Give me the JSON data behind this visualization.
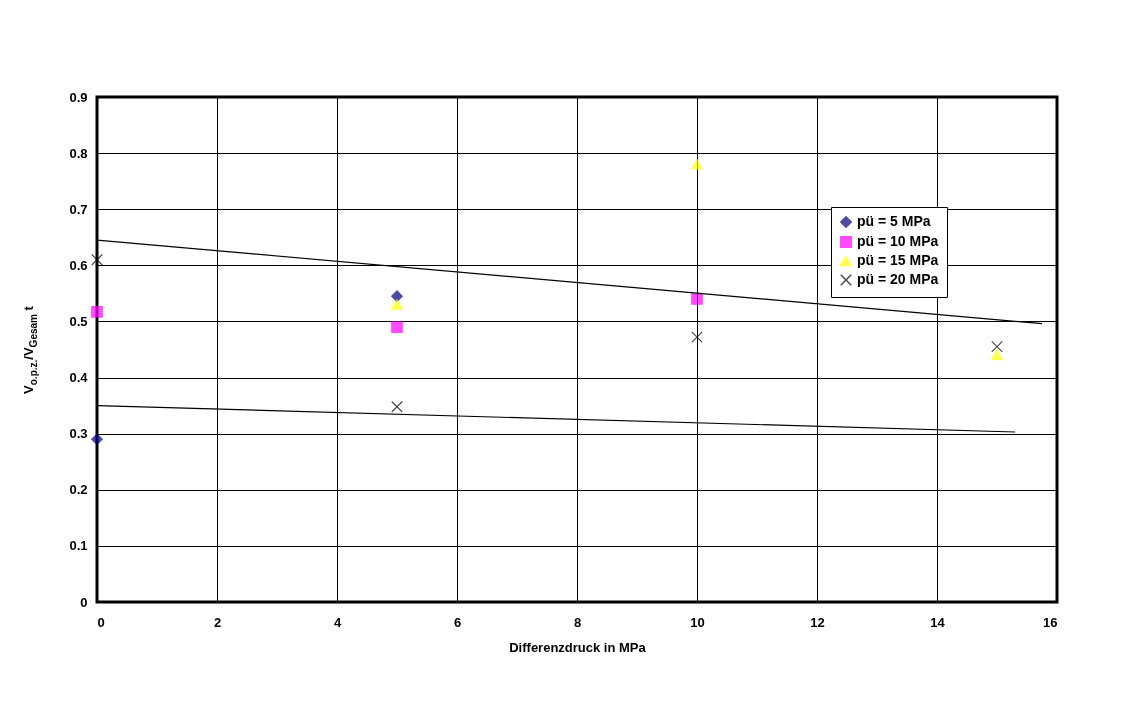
{
  "chart_data": {
    "type": "scatter",
    "xlabel": "Differenzdruck  in MPa",
    "ylabel": "V$_{o.p.z.}$/V$_{Gesam}$ t",
    "xlim": [
      0,
      16
    ],
    "xticks": [
      0,
      2,
      4,
      6,
      8,
      10,
      12,
      14,
      16
    ],
    "ylim": [
      0,
      0.9
    ],
    "yticks": [
      0,
      0.1,
      0.2,
      0.3,
      0.4,
      0.5,
      0.6,
      0.7,
      0.8,
      0.9
    ],
    "grid": true,
    "legend": "top right",
    "series": [
      {
        "name": "pü = 5 MPa",
        "color": "#000080",
        "marker": "diamond",
        "x": [
          0,
          5
        ],
        "values": [
          0.29,
          0.545
        ]
      },
      {
        "name": "pü = 10 MPa",
        "color": "#ff00ff",
        "marker": "square",
        "x": [
          0,
          5,
          10
        ],
        "values": [
          0.517,
          0.49,
          0.54
        ]
      },
      {
        "name": "pü = 15 MPa",
        "color": "#ffff00",
        "marker": "triangle",
        "x": [
          5,
          10,
          15
        ],
        "values": [
          0.53,
          0.78,
          0.44
        ]
      },
      {
        "name": "pü = 20 MPa",
        "color": "#000000",
        "marker": "cross",
        "x": [
          0,
          5,
          10,
          15
        ],
        "values": [
          0.61,
          0.348,
          0.472,
          0.455
        ]
      },
      {
        "type": "line",
        "color": "#000000",
        "x": [
          0,
          15.75
        ],
        "values": [
          0.645,
          0.496
        ]
      },
      {
        "type": "line",
        "color": "#000000",
        "x": [
          0,
          15.3
        ],
        "values": [
          0.35,
          0.303
        ]
      }
    ]
  }
}
